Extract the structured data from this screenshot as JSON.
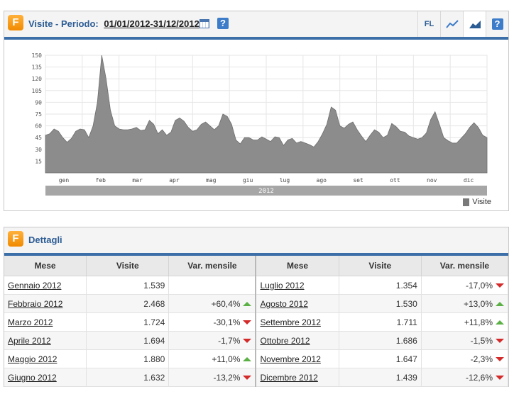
{
  "panel_visits": {
    "title": "Visite - Periodo:",
    "period": "01/01/2012-31/12/2012",
    "tools": [
      "FL",
      "line-chart-icon",
      "area-chart-icon",
      "help-icon"
    ],
    "help_label": "?",
    "fl_label": "FL"
  },
  "chart_data": {
    "type": "area",
    "year_label": "2012",
    "legend": "Visite",
    "yticks": [
      15,
      30,
      45,
      60,
      75,
      90,
      105,
      120,
      135,
      150
    ],
    "ylim": [
      0,
      150
    ],
    "month_labels": [
      "gen",
      "feb",
      "mar",
      "apr",
      "mag",
      "giu",
      "lug",
      "ago",
      "set",
      "ott",
      "nov",
      "dic"
    ],
    "color": "#8c8c8c",
    "series": [
      {
        "name": "Visite",
        "values": [
          48,
          50,
          56,
          53,
          45,
          39,
          44,
          53,
          56,
          55,
          45,
          60,
          90,
          150,
          120,
          80,
          60,
          56,
          55,
          55,
          56,
          58,
          54,
          55,
          67,
          62,
          50,
          55,
          48,
          52,
          67,
          70,
          66,
          58,
          53,
          55,
          62,
          65,
          60,
          55,
          60,
          75,
          72,
          62,
          42,
          37,
          45,
          45,
          42,
          42,
          46,
          43,
          40,
          46,
          45,
          35,
          42,
          44,
          38,
          40,
          38,
          36,
          33,
          40,
          50,
          62,
          84,
          80,
          60,
          57,
          62,
          65,
          55,
          47,
          40,
          48,
          55,
          52,
          45,
          48,
          63,
          59,
          53,
          52,
          47,
          45,
          43,
          45,
          51,
          68,
          78,
          62,
          45,
          41,
          38,
          38,
          44,
          50,
          58,
          64,
          58,
          48,
          45
        ]
      }
    ]
  },
  "panel_details": {
    "title": "Dettagli",
    "columns": [
      "Mese",
      "Visite",
      "Var. mensile",
      "Mese",
      "Visite",
      "Var. mensile"
    ],
    "rows": [
      {
        "m1": "Gennaio 2012",
        "v1": "1.539",
        "d1": "",
        "t1": "",
        "m2": "Luglio 2012",
        "v2": "1.354",
        "d2": "-17,0%",
        "t2": "down"
      },
      {
        "m1": "Febbraio 2012",
        "v1": "2.468",
        "d1": "+60,4%",
        "t1": "up",
        "m2": "Agosto 2012",
        "v2": "1.530",
        "d2": "+13,0%",
        "t2": "up"
      },
      {
        "m1": "Marzo 2012",
        "v1": "1.724",
        "d1": "-30,1%",
        "t1": "down",
        "m2": "Settembre 2012",
        "v2": "1.711",
        "d2": "+11,8%",
        "t2": "up"
      },
      {
        "m1": "Aprile 2012",
        "v1": "1.694",
        "d1": "-1,7%",
        "t1": "down",
        "m2": "Ottobre 2012",
        "v2": "1.686",
        "d2": "-1,5%",
        "t2": "down"
      },
      {
        "m1": "Maggio 2012",
        "v1": "1.880",
        "d1": "+11,0%",
        "t1": "up",
        "m2": "Novembre 2012",
        "v2": "1.647",
        "d2": "-2,3%",
        "t2": "down"
      },
      {
        "m1": "Giugno 2012",
        "v1": "1.632",
        "d1": "-13,2%",
        "t1": "down",
        "m2": "Dicembre 2012",
        "v2": "1.439",
        "d2": "-12,6%",
        "t2": "down"
      }
    ]
  },
  "colors": {
    "accent": "#3c6ea8",
    "title": "#2c5c94",
    "up": "#5cb046",
    "down": "#d42a2a",
    "logo": "#f59a12"
  },
  "logo_letter": "F"
}
